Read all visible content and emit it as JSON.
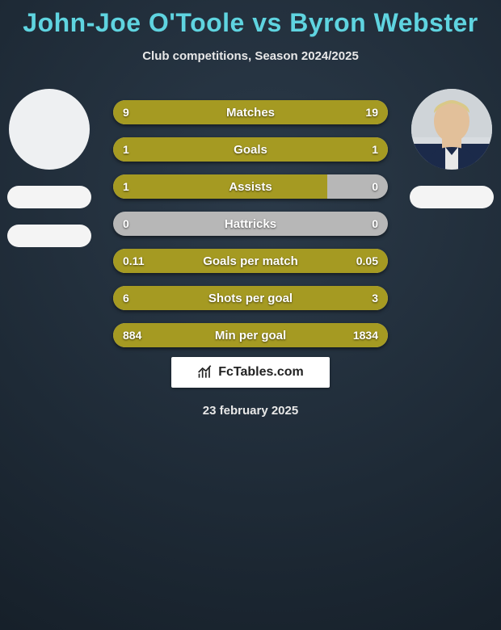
{
  "title": "John-Joe O'Toole vs Byron Webster",
  "title_color": "#5fd4e0",
  "subtitle": "Club competitions, Season 2024/2025",
  "background": {
    "radial_inner": "#2b3a49",
    "radial_mid": "#1e2a36",
    "radial_outer": "#141d26"
  },
  "players": {
    "left": {
      "name": "John-Joe O'Toole",
      "avatar_bg": "#eef0f2",
      "has_photo": false
    },
    "right": {
      "name": "Byron Webster",
      "avatar_bg": "#d8dce0",
      "has_photo": true,
      "photo_skin": "#e2c09a",
      "photo_hair": "#d9c988",
      "photo_shirt": "#1b2a4a"
    }
  },
  "bar_style": {
    "height": 30,
    "radius": 15,
    "gap": 16,
    "neutral_left": "#b7b7b7",
    "neutral_right": "#b7b7b7",
    "fill_left": "#a59a22",
    "fill_right": "#a59a22",
    "label_color": "#ffffff",
    "value_color": "#ffffff",
    "label_fontsize": 15,
    "value_fontsize": 14
  },
  "bars": [
    {
      "label": "Matches",
      "left_val": "9",
      "right_val": "19",
      "left_pct": 32,
      "right_pct": 68,
      "neutral_split": 50
    },
    {
      "label": "Goals",
      "left_val": "1",
      "right_val": "1",
      "left_pct": 50,
      "right_pct": 50,
      "neutral_split": 50
    },
    {
      "label": "Assists",
      "left_val": "1",
      "right_val": "0",
      "left_pct": 78,
      "right_pct": 0,
      "neutral_split": 50
    },
    {
      "label": "Hattricks",
      "left_val": "0",
      "right_val": "0",
      "left_pct": 0,
      "right_pct": 0,
      "neutral_split": 50
    },
    {
      "label": "Goals per match",
      "left_val": "0.11",
      "right_val": "0.05",
      "left_pct": 69,
      "right_pct": 31,
      "neutral_split": 50
    },
    {
      "label": "Shots per goal",
      "left_val": "6",
      "right_val": "3",
      "left_pct": 67,
      "right_pct": 33,
      "neutral_split": 50
    },
    {
      "label": "Min per goal",
      "left_val": "884",
      "right_val": "1834",
      "left_pct": 33,
      "right_pct": 67,
      "neutral_split": 50
    }
  ],
  "footer": {
    "brand": "FcTables.com",
    "brand_color": "#222222",
    "pill_bg": "#ffffff"
  },
  "date": "23 february 2025"
}
